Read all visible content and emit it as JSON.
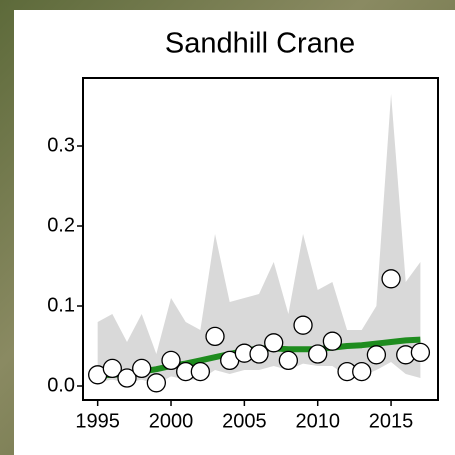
{
  "chart_data": {
    "type": "line",
    "title": "Sandhill Crane",
    "x": [
      1995,
      1996,
      1997,
      1998,
      1999,
      2000,
      2001,
      2002,
      2003,
      2004,
      2005,
      2006,
      2007,
      2008,
      2009,
      2010,
      2011,
      2012,
      2013,
      2014,
      2015,
      2016,
      2017
    ],
    "observed": {
      "values": [
        0.014,
        0.022,
        0.01,
        0.022,
        0.004,
        0.032,
        0.018,
        0.018,
        0.062,
        0.032,
        0.041,
        0.04,
        0.054,
        0.032,
        0.076,
        0.04,
        0.056,
        0.018,
        0.018,
        0.039,
        0.134,
        0.039,
        0.042
      ]
    },
    "trend": {
      "color": "#1e8c1e",
      "values": [
        0.013,
        0.014,
        0.015,
        0.018,
        0.021,
        0.025,
        0.028,
        0.032,
        0.036,
        0.04,
        0.044,
        0.047,
        0.047,
        0.046,
        0.046,
        0.046,
        0.048,
        0.05,
        0.051,
        0.053,
        0.055,
        0.057,
        0.058
      ]
    },
    "band": {
      "color": "#d9d9d9",
      "upper": [
        0.08,
        0.09,
        0.055,
        0.09,
        0.04,
        0.11,
        0.08,
        0.07,
        0.19,
        0.105,
        0.11,
        0.115,
        0.155,
        0.09,
        0.19,
        0.12,
        0.13,
        0.07,
        0.07,
        0.1,
        0.365,
        0.13,
        0.155
      ],
      "lower": [
        0.005,
        0.008,
        0.004,
        0.008,
        0.002,
        0.012,
        0.008,
        0.008,
        0.02,
        0.015,
        0.02,
        0.02,
        0.025,
        0.02,
        0.028,
        0.025,
        0.025,
        0.012,
        0.012,
        0.02,
        0.03,
        0.015,
        0.01
      ]
    },
    "xlim": [
      1994,
      2018.2
    ],
    "ylim": [
      -0.0175,
      0.385
    ],
    "xticks": [
      1995,
      2000,
      2005,
      2010,
      2015
    ],
    "yticks": [
      {
        "value": 0,
        "label": "0.0"
      },
      0.1,
      0.2,
      0.3
    ]
  }
}
